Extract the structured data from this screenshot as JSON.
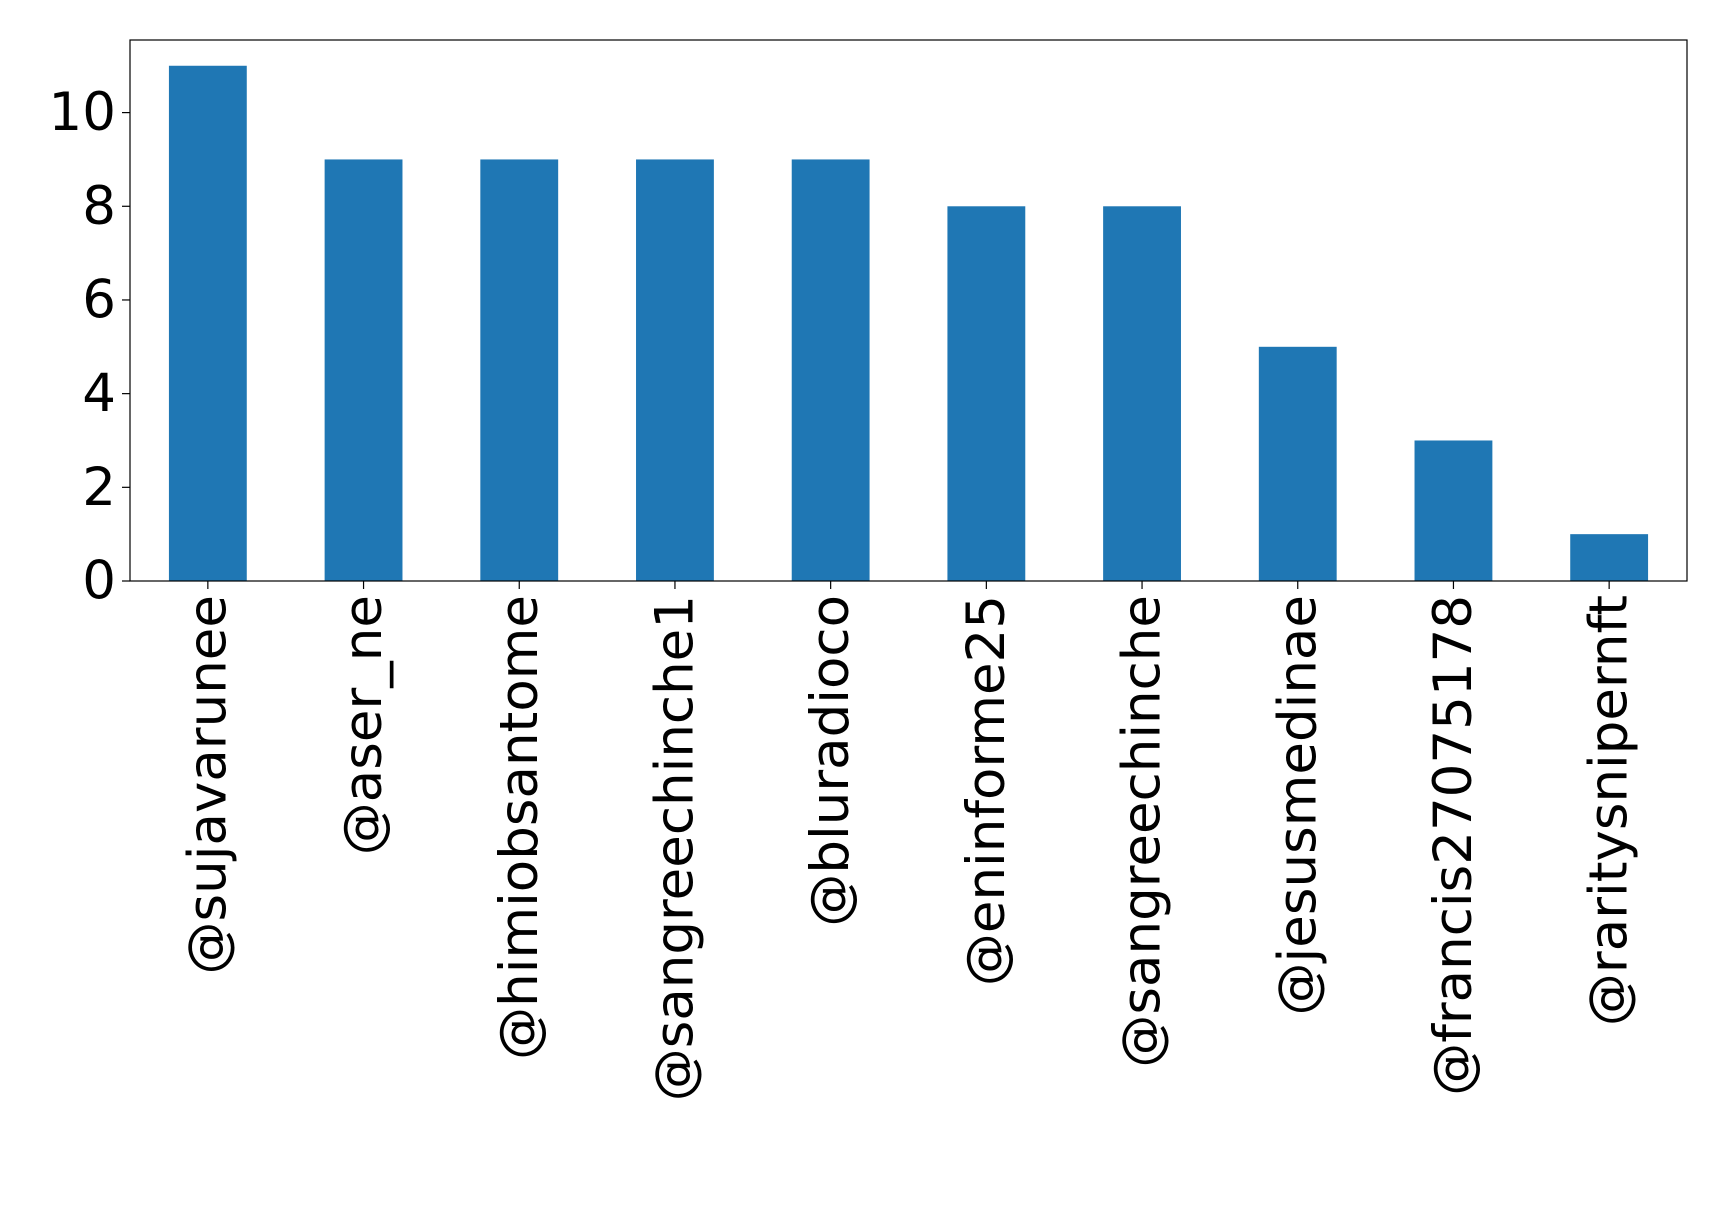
{
  "chart_data": {
    "type": "bar",
    "title": "",
    "xlabel": "",
    "ylabel": "",
    "categories": [
      "@sujavarunee",
      "@aser_ne",
      "@himiobsantome",
      "@sangreechinche1",
      "@bluradioco",
      "@eninforme25",
      "@sangreechinche",
      "@jesusmedinae",
      "@francis27075178",
      "@raritysnipernft"
    ],
    "values": [
      11,
      9,
      9,
      9,
      9,
      8,
      8,
      5,
      3,
      1
    ],
    "ylim": [
      0,
      11.55
    ],
    "yticks": [
      0,
      2,
      4,
      6,
      8,
      10
    ],
    "grid": false,
    "legend": "none",
    "bar_color": "#1f77b4"
  }
}
